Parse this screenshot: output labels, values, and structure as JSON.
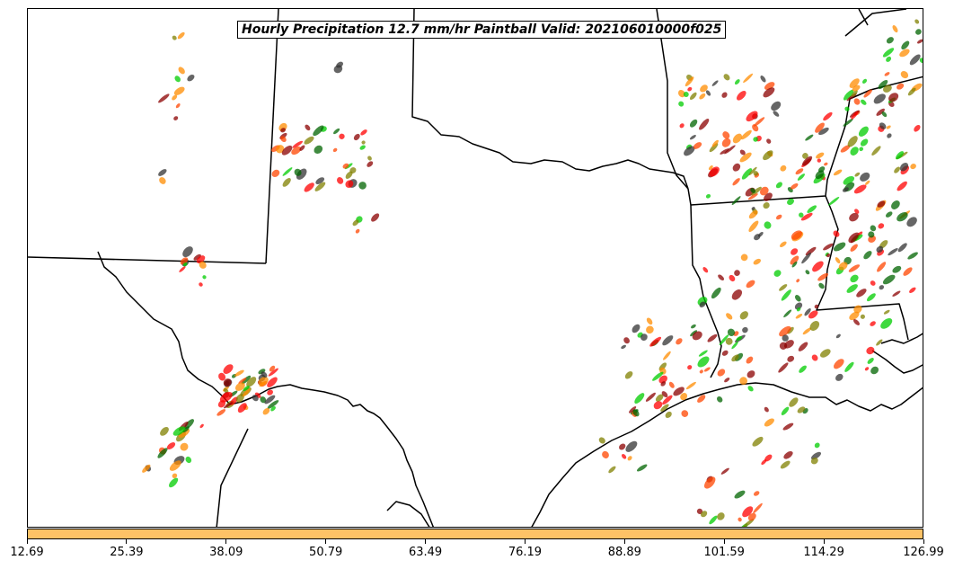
{
  "title": "Hourly Precipitation 12.7 mm/hr Paintball Valid: 202106010000f025",
  "colors": {
    "colorbar_fill": "#fdc266",
    "boundary_line": "#000000",
    "members": [
      "#ff0000",
      "#ff8c00",
      "#00cc00",
      "#006400",
      "#8b0000",
      "#808000",
      "#333333",
      "#ff4500"
    ]
  },
  "map_data": {
    "type": "paintball",
    "variable": "Hourly Precipitation",
    "threshold": "12.7 mm/hr",
    "valid": "202106010000f025"
  },
  "colorbar": {
    "ticks": [
      "12.69",
      "25.39",
      "38.09",
      "50.79",
      "63.49",
      "76.19",
      "88.89",
      "101.59",
      "114.29",
      "126.99"
    ]
  }
}
